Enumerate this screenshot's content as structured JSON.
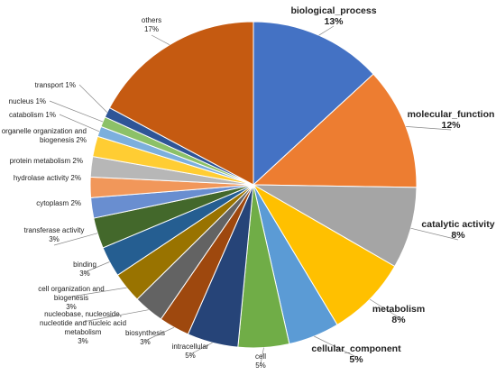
{
  "chart_data": {
    "type": "pie",
    "slices": [
      {
        "label": "biological_process",
        "value": 13,
        "display": "13%",
        "color": "#4472C4"
      },
      {
        "label": "molecular_function",
        "value": 12,
        "display": "12%",
        "color": "#ED7D31"
      },
      {
        "label": "catalytic activity",
        "value": 8,
        "display": "8%",
        "color": "#A5A5A5"
      },
      {
        "label": "metabolism",
        "value": 8,
        "display": "8%",
        "color": "#FFC000"
      },
      {
        "label": "cellular_component",
        "value": 5,
        "display": "5%",
        "color": "#5B9BD5"
      },
      {
        "label": "cell",
        "value": 5,
        "display": "5%",
        "color": "#70AD47"
      },
      {
        "label": "intracellular",
        "value": 5,
        "display": "5%",
        "color": "#264478"
      },
      {
        "label": "biosynthesis",
        "value": 3,
        "display": "3%",
        "color": "#9E480E"
      },
      {
        "label": "nucleobase, nucleoside, nucleotide and nucleic acid metabolism",
        "value": 3,
        "display": "3%",
        "color": "#636363"
      },
      {
        "label": "cell organization and biogenesis",
        "value": 3,
        "display": "3%",
        "color": "#997300"
      },
      {
        "label": "binding",
        "value": 3,
        "display": "3%",
        "color": "#255E91"
      },
      {
        "label": "transferase activity",
        "value": 3,
        "display": "3%",
        "color": "#43682B"
      },
      {
        "label": "cytoplasm",
        "value": 2,
        "display": "2%",
        "color": "#698ED0"
      },
      {
        "label": "hydrolase activity",
        "value": 2,
        "display": "2%",
        "color": "#F1975A"
      },
      {
        "label": "protein metabolism",
        "value": 2,
        "display": "2%",
        "color": "#B7B7B7"
      },
      {
        "label": "organelle organization and biogenesis",
        "value": 2,
        "display": "2%",
        "color": "#FFCD33"
      },
      {
        "label": "catabolism",
        "value": 1,
        "display": "1%",
        "color": "#7CAFDD"
      },
      {
        "label": "nucleus",
        "value": 1,
        "display": "1%",
        "color": "#8CC168"
      },
      {
        "label": "transport",
        "value": 1,
        "display": "1%",
        "color": "#2F5597"
      },
      {
        "label": "others",
        "value": 17,
        "display": "17%",
        "color": "#C55A11"
      }
    ]
  }
}
